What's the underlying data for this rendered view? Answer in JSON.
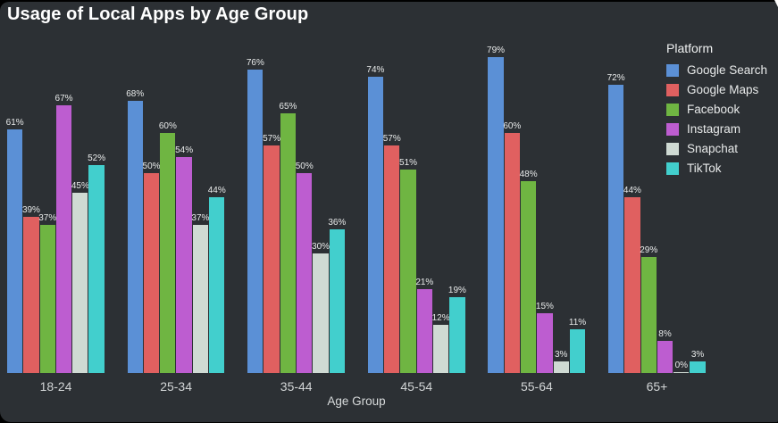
{
  "chart_data": {
    "type": "bar",
    "title": "Usage of Local Apps by Age Group",
    "xlabel": "Age Group",
    "ylabel": "",
    "categories": [
      "18-24",
      "25-34",
      "35-44",
      "45-54",
      "55-64",
      "65+"
    ],
    "series": [
      {
        "name": "Google Search",
        "color": "#5b90d6",
        "values": [
          61,
          68,
          76,
          74,
          79,
          72
        ]
      },
      {
        "name": "Google Maps",
        "color": "#e06060",
        "values": [
          39,
          50,
          57,
          57,
          60,
          44
        ]
      },
      {
        "name": "Facebook",
        "color": "#6fb542",
        "values": [
          37,
          60,
          65,
          51,
          48,
          29
        ]
      },
      {
        "name": "Instagram",
        "color": "#bd5dd0",
        "values": [
          67,
          54,
          50,
          21,
          15,
          8
        ]
      },
      {
        "name": "Snapchat",
        "color": "#cfdad3",
        "values": [
          45,
          37,
          30,
          12,
          3,
          0
        ]
      },
      {
        "name": "TikTok",
        "color": "#42cfcd",
        "values": [
          52,
          44,
          36,
          19,
          11,
          3
        ]
      }
    ],
    "value_suffix": "%",
    "value_labels": true,
    "legend_title": "Platform",
    "legend_position": "top-right",
    "grid": false,
    "ylim": [
      0,
      80
    ]
  },
  "colors": {
    "page_background": "#000000",
    "panel_background": "#2c3034",
    "title_text": "#ffffff",
    "label_text": "#e8eaea",
    "tick_text": "#d2d5d6"
  }
}
